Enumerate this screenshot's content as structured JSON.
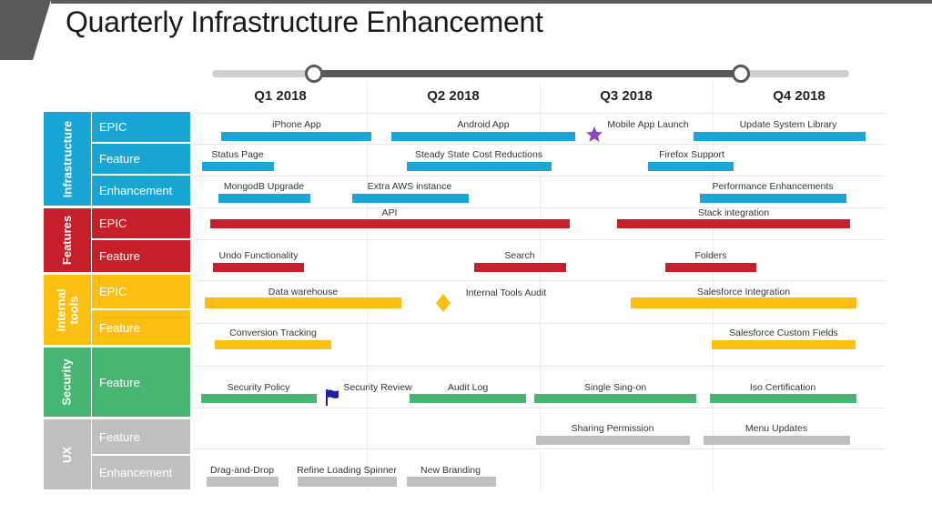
{
  "title": "Quarterly Infrastructure Enhancement",
  "colors": {
    "infrastructure": "#1aa6d4",
    "features": "#c5202a",
    "internal_tools": "#fcbf10",
    "security": "#47b672",
    "ux": "#bfbfbf",
    "star": "#8e44c6",
    "flag": "#1f1fa3"
  },
  "timeline": {
    "quarters": [
      "Q1 2018",
      "Q2 2018",
      "Q3 2018",
      "Q4 2018"
    ]
  },
  "groups": [
    {
      "label": "Infrastructure",
      "color_key": "infrastructure",
      "rows": [
        "EPIC",
        "Feature",
        "Enhancement"
      ]
    },
    {
      "label": "Features",
      "color_key": "features",
      "rows": [
        "EPIC",
        "Feature"
      ]
    },
    {
      "label": "Internal\ntools",
      "color_key": "internal_tools",
      "rows": [
        "EPIC",
        "Feature"
      ]
    },
    {
      "label": "Security",
      "color_key": "security",
      "rows": [
        "Feature"
      ]
    },
    {
      "label": "UX",
      "color_key": "ux",
      "rows": [
        "Feature",
        "Enhancement"
      ]
    }
  ],
  "items": [
    {
      "label": "iPhone App",
      "color_key": "infrastructure"
    },
    {
      "label": "Android App",
      "color_key": "infrastructure"
    },
    {
      "label": "Mobile App Launch",
      "color_key": "infrastructure",
      "milestone": "star-icon"
    },
    {
      "label": "Update System Library",
      "color_key": "infrastructure"
    },
    {
      "label": "Status Page",
      "color_key": "infrastructure"
    },
    {
      "label": "Steady State Cost Reductions",
      "color_key": "infrastructure"
    },
    {
      "label": "Firefox Support",
      "color_key": "infrastructure"
    },
    {
      "label": "MongodB Upgrade",
      "color_key": "infrastructure"
    },
    {
      "label": "Extra AWS instance",
      "color_key": "infrastructure"
    },
    {
      "label": "Performance  Enhancements",
      "color_key": "infrastructure"
    },
    {
      "label": "API",
      "color_key": "features"
    },
    {
      "label": "Stack integration",
      "color_key": "features"
    },
    {
      "label": "Undo Functionality",
      "color_key": "features"
    },
    {
      "label": "Search",
      "color_key": "features"
    },
    {
      "label": "Folders",
      "color_key": "features"
    },
    {
      "label": "Data warehouse",
      "color_key": "internal_tools"
    },
    {
      "label": "Internal  Tools  Audit",
      "color_key": "internal_tools",
      "milestone": "diamond-icon"
    },
    {
      "label": "Salesforce Integration",
      "color_key": "internal_tools"
    },
    {
      "label": "Conversion  Tracking",
      "color_key": "internal_tools"
    },
    {
      "label": "Salesforce Custom Fields",
      "color_key": "internal_tools"
    },
    {
      "label": "Security Policy",
      "color_key": "security"
    },
    {
      "label": "Security Review",
      "color_key": "security",
      "milestone": "flag-icon"
    },
    {
      "label": "Audit Log",
      "color_key": "security"
    },
    {
      "label": "Single Sing-on",
      "color_key": "security"
    },
    {
      "label": "Iso Certification",
      "color_key": "security"
    },
    {
      "label": "Sharing Permission",
      "color_key": "ux"
    },
    {
      "label": "Menu Updates",
      "color_key": "ux"
    },
    {
      "label": "Drag-and-Drop",
      "color_key": "ux"
    },
    {
      "label": "Refine  Loading  Spinner",
      "color_key": "ux"
    },
    {
      "label": "New Branding",
      "color_key": "ux"
    }
  ]
}
